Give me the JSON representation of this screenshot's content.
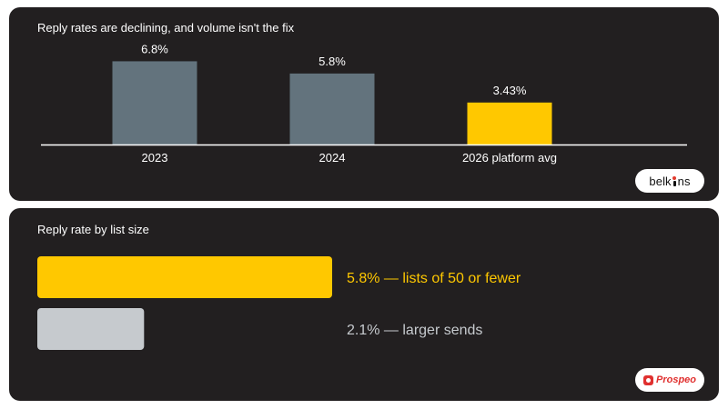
{
  "panels": [
    {
      "title": "Reply rates are declining, and volume isn't the fix",
      "brand": "belkins",
      "chart_data": {
        "type": "bar",
        "orientation": "vertical",
        "title": "Reply rates are declining, and volume isn't the fix",
        "categories": [
          "2023",
          "2024",
          "2026 platform avg"
        ],
        "values": [
          6.8,
          5.8,
          3.43
        ],
        "value_labels": [
          "6.8%",
          "5.8%",
          "3.43%"
        ],
        "colors": [
          "#63737d",
          "#63737d",
          "#ffc800"
        ],
        "unit": "%",
        "ylim": [
          0,
          7.5
        ],
        "grid": false,
        "legend": "none"
      }
    },
    {
      "title": "Reply rate by list size",
      "brand": "Prospeo",
      "chart_data": {
        "type": "bar",
        "orientation": "horizontal",
        "title": "Reply rate by list size",
        "categories": [
          "lists of 50 or fewer",
          "larger sends"
        ],
        "values": [
          5.8,
          2.1
        ],
        "value_labels": [
          "5.8% — lists of 50 or fewer",
          "2.1% — larger sends"
        ],
        "colors": [
          "#ffc800",
          "#c6cace"
        ],
        "label_colors": [
          "#ffc800",
          "#c6cace"
        ],
        "unit": "%",
        "xlim": [
          0,
          5.8
        ],
        "grid": false,
        "legend": "none"
      }
    }
  ],
  "colors": {
    "panel_bg": "#221f20",
    "axis": "#ffffff",
    "text": "#ffffff"
  }
}
